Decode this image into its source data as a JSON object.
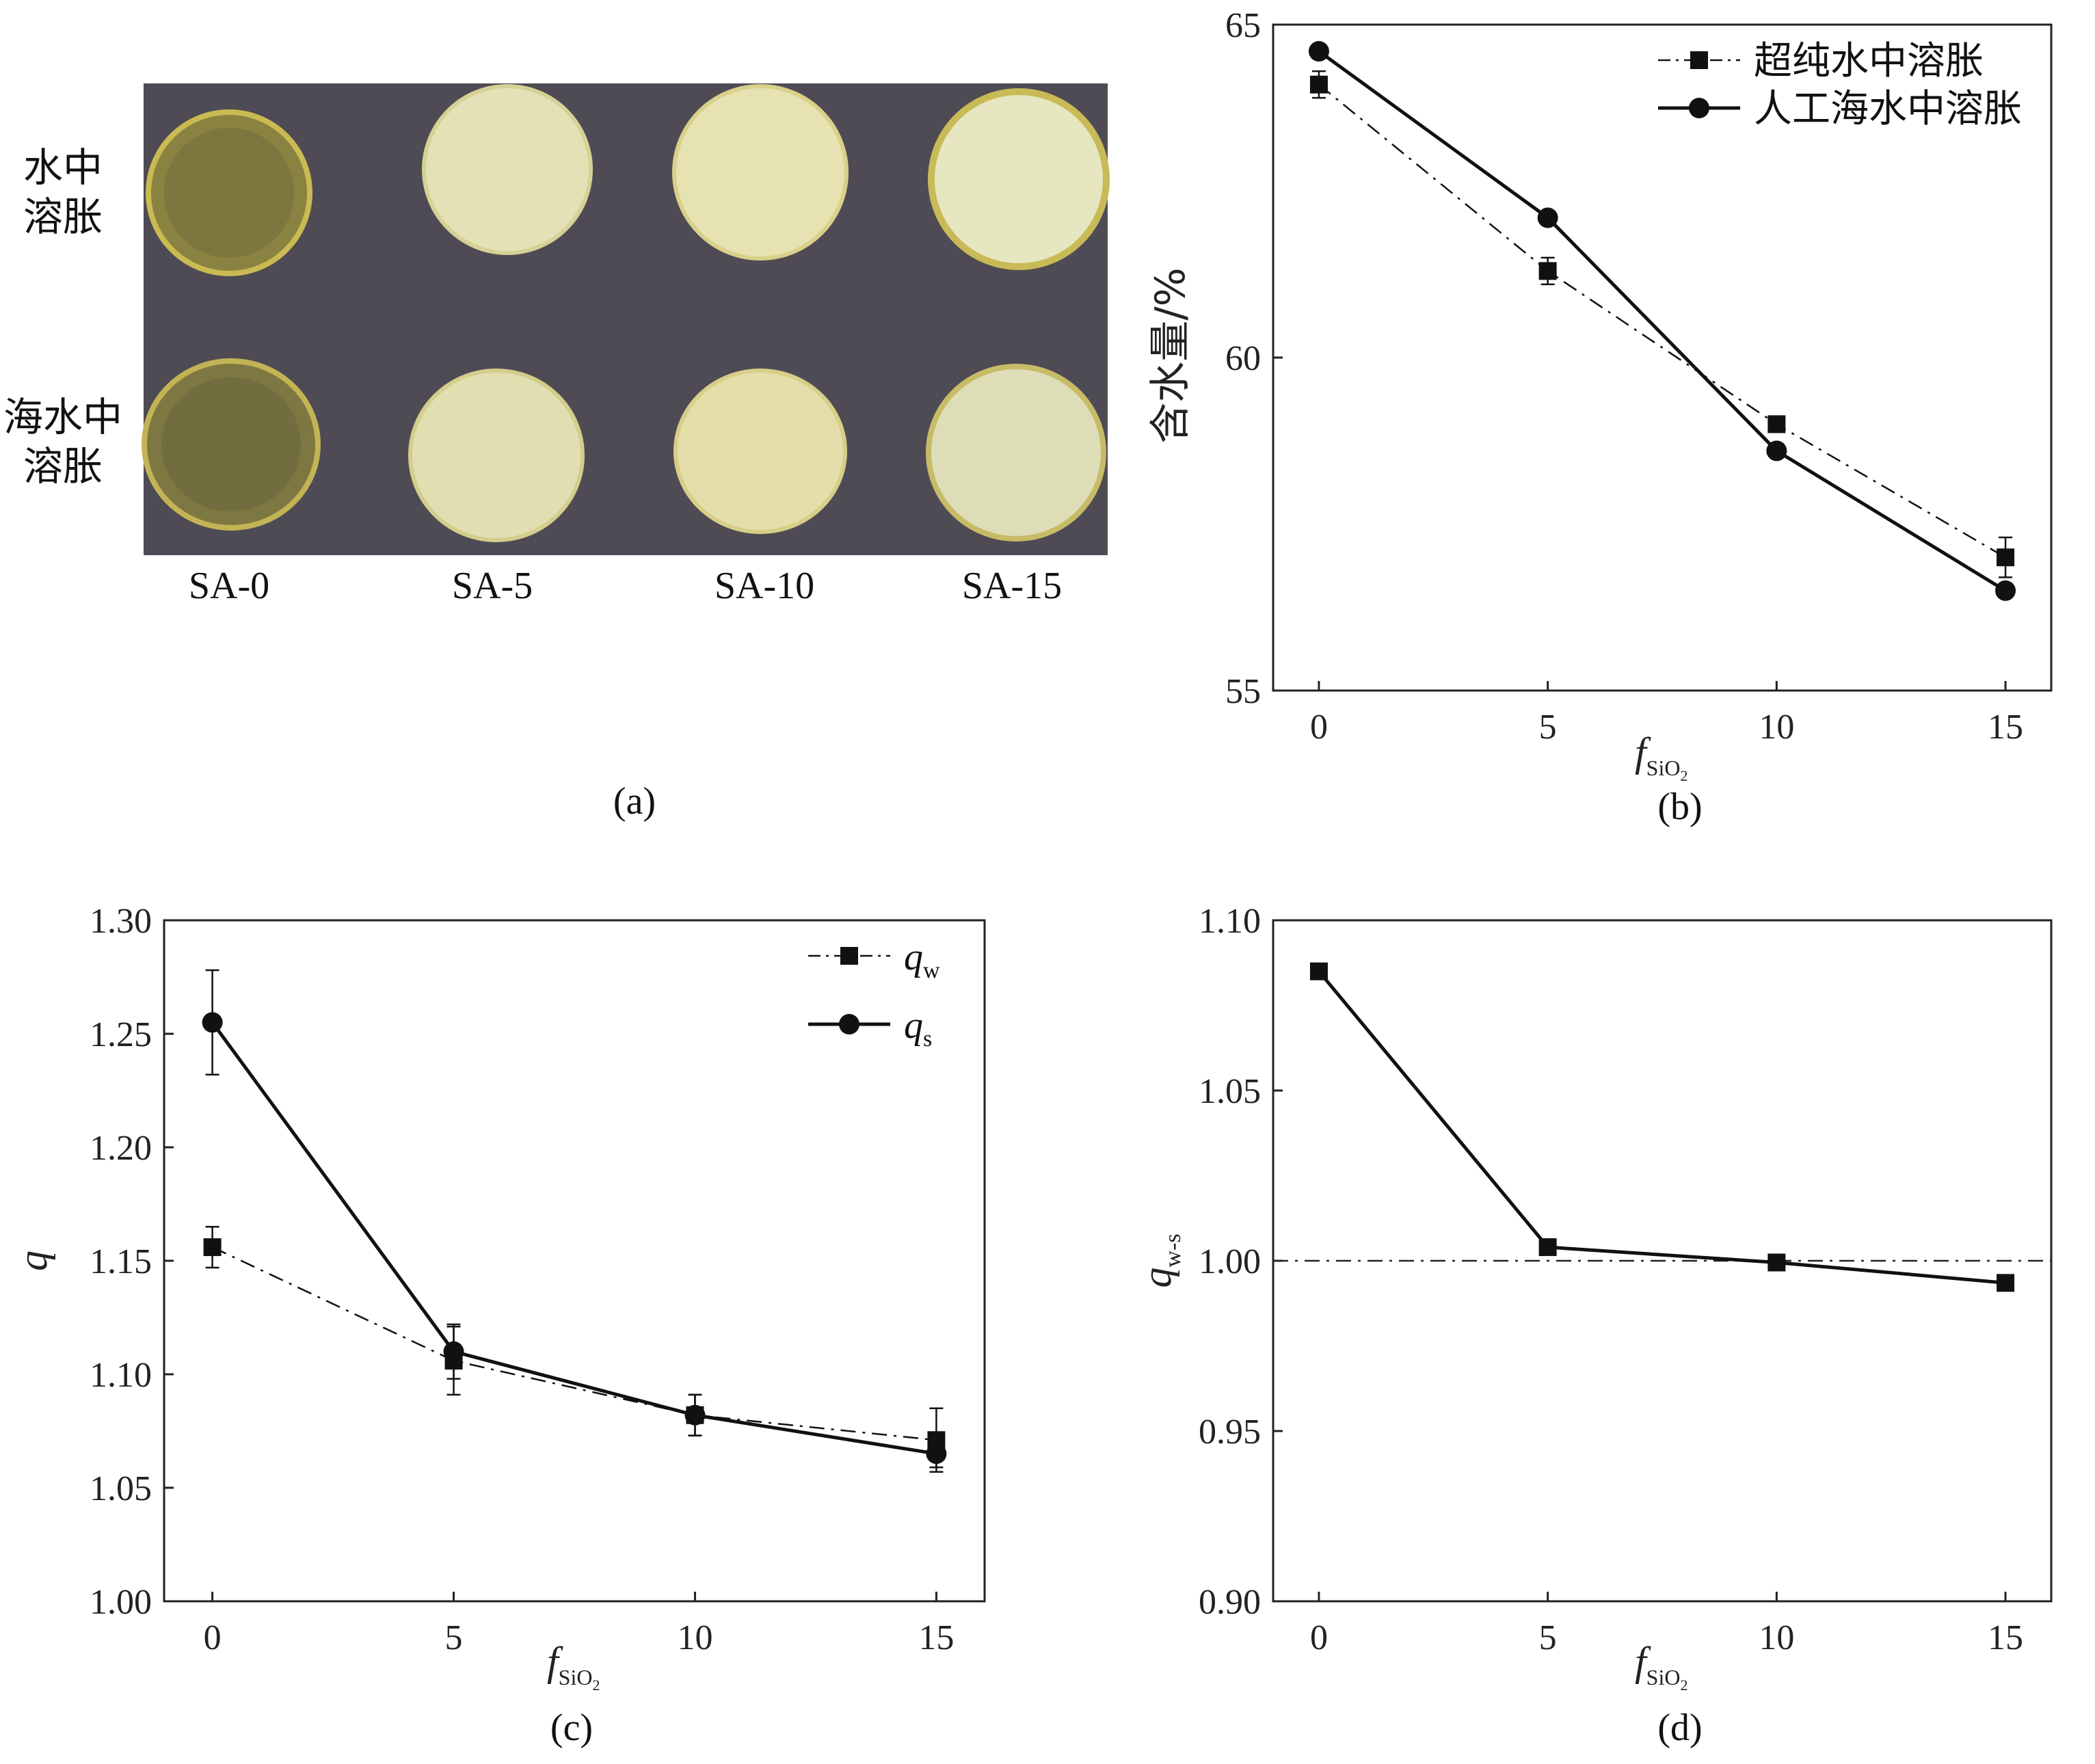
{
  "panel_a": {
    "caption": "(a)",
    "row_labels": [
      [
        "水中",
        "溶胀"
      ],
      [
        "海水中",
        "溶胀"
      ]
    ],
    "sample_labels": [
      "SA-0",
      "SA-5",
      "SA-10",
      "SA-15"
    ],
    "colors": {
      "background": "#4c4850",
      "clear_disc": "#8a8240",
      "opaque_disc": "#e4e0b0"
    }
  },
  "chart_data": [
    {
      "panel": "b",
      "type": "line",
      "caption": "(b)",
      "ylabel": "含水量/%",
      "xlabel_main": "f",
      "xlabel_sub": "SiO",
      "xlabel_sub2": "2",
      "x": [
        0,
        5,
        10,
        15
      ],
      "xticks": [
        "0",
        "5",
        "10",
        "15"
      ],
      "ylim": [
        55,
        65
      ],
      "yticks": [
        "55",
        "60",
        "65"
      ],
      "legend_position": "top-right",
      "series": [
        {
          "name": "超纯水中溶胀",
          "marker": "square",
          "style": "dashdot",
          "values": [
            64.1,
            61.3,
            59.0,
            57.0
          ],
          "error": [
            0.2,
            0.2,
            0.0,
            0.3
          ]
        },
        {
          "name": "人工海水中溶胀",
          "marker": "circle",
          "style": "solid",
          "values": [
            64.6,
            62.1,
            58.6,
            56.5
          ],
          "error": [
            0,
            0,
            0,
            0
          ]
        }
      ]
    },
    {
      "panel": "c",
      "type": "line",
      "caption": "(c)",
      "ylabel": "q",
      "xlabel_main": "f",
      "xlabel_sub": "SiO",
      "xlabel_sub2": "2",
      "x": [
        0,
        5,
        10,
        15
      ],
      "xticks": [
        "0",
        "5",
        "10",
        "15"
      ],
      "ylim": [
        1.0,
        1.3
      ],
      "yticks": [
        "1.00",
        "1.05",
        "1.10",
        "1.15",
        "1.20",
        "1.25",
        "1.30"
      ],
      "legend_position": "top-right",
      "series": [
        {
          "name": "q",
          "name_sub": "w",
          "marker": "square",
          "style": "dashdot",
          "values": [
            1.156,
            1.106,
            1.082,
            1.071
          ],
          "error": [
            0.009,
            0.015,
            0.009,
            0.014
          ]
        },
        {
          "name": "q",
          "name_sub": "s",
          "marker": "circle",
          "style": "solid",
          "values": [
            1.255,
            1.11,
            1.082,
            1.065
          ],
          "error": [
            0.023,
            0.012,
            0.009,
            0.006
          ]
        }
      ]
    },
    {
      "panel": "d",
      "type": "line",
      "caption": "(d)",
      "ylabel": "q",
      "ylabel_sub": "w-s",
      "xlabel_main": "f",
      "xlabel_sub": "SiO",
      "xlabel_sub2": "2",
      "x": [
        0,
        5,
        10,
        15
      ],
      "xticks": [
        "0",
        "5",
        "10",
        "15"
      ],
      "ylim": [
        0.9,
        1.1
      ],
      "yticks": [
        "0.90",
        "0.95",
        "1.00",
        "1.05",
        "1.10"
      ],
      "reference_line": 1.0,
      "series": [
        {
          "name": "",
          "marker": "square",
          "style": "solid",
          "values": [
            1.085,
            1.004,
            0.9995,
            0.9935
          ]
        }
      ]
    }
  ]
}
